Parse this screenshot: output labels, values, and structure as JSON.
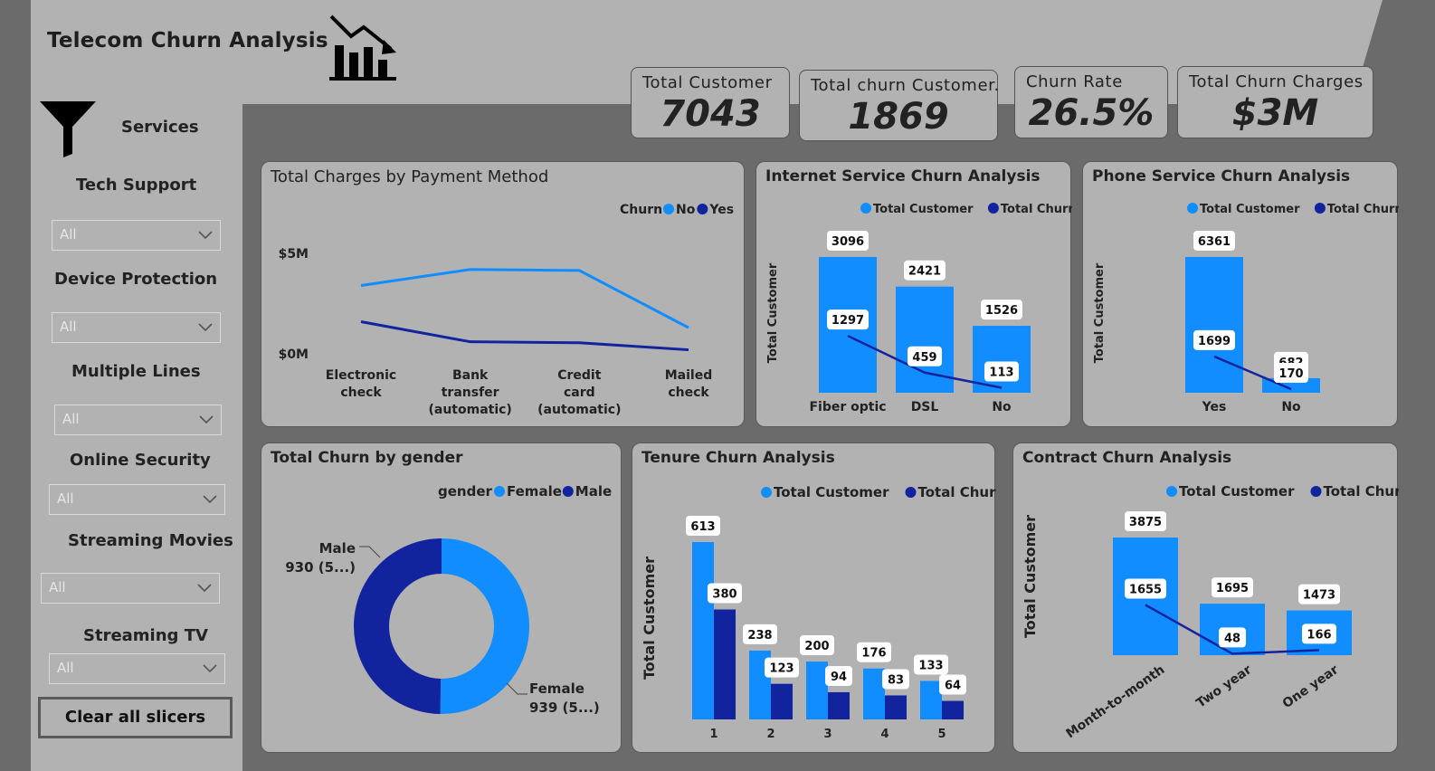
{
  "app": {
    "title": "Telecom Churn Analysis",
    "icon": "chart-decline-icon"
  },
  "colors": {
    "light_blue": "#118DFF",
    "dark_blue": "#12239E",
    "panel_gray": "#B2B2B2",
    "background_gray": "#6B6B6B"
  },
  "sidebar": {
    "filter_icon": "funnel-icon",
    "services_label": "Services",
    "slicers": [
      {
        "title": "Tech Support",
        "value": "All"
      },
      {
        "title": "Device Protection",
        "value": "All"
      },
      {
        "title": "Multiple Lines",
        "value": "All"
      },
      {
        "title": "Online Security",
        "value": "All"
      },
      {
        "title": "Streaming Movies",
        "value": "All"
      },
      {
        "title": "Streaming TV",
        "value": "All"
      }
    ],
    "clear_button": "Clear all slicers"
  },
  "kpis": [
    {
      "label": "Total Customer",
      "value": "7043"
    },
    {
      "label": "Total churn Customer.",
      "value": "1869"
    },
    {
      "label": "Churn Rate",
      "value": "26.5%"
    },
    {
      "label": "Total Churn Charges",
      "value": "$3M"
    }
  ],
  "cards": {
    "payment": "Total Charges by Payment Method",
    "internet": "Internet Service Churn Analysis",
    "phone": "Phone Service Churn Analysis",
    "gender": "Total Churn by gender",
    "tenure": "Tenure Churn Analysis",
    "contract": "Contract Churn Analysis"
  },
  "chart_data": [
    {
      "id": "payment",
      "type": "line",
      "title": "Total Charges by Payment Method",
      "legend_title": "Churn",
      "legend_position": "top-right",
      "categories": [
        "Electronic check",
        "Bank transfer (automatic)",
        "Credit card (automatic)",
        "Mailed check"
      ],
      "series": [
        {
          "name": "No",
          "color": "#118DFF",
          "values": [
            3.4,
            4.2,
            4.15,
            1.3
          ]
        },
        {
          "name": "Yes",
          "color": "#12239E",
          "values": [
            1.6,
            0.6,
            0.55,
            0.2
          ]
        }
      ],
      "ytick_labels": [
        "$5M",
        "$0M"
      ],
      "yticks": [
        5,
        0
      ],
      "ylim": [
        0,
        5
      ]
    },
    {
      "id": "internet",
      "type": "bar",
      "title": "Internet Service Churn Analysis",
      "ylabel": "Total Customer",
      "legend_position": "top",
      "categories": [
        "Fiber optic",
        "DSL",
        "No"
      ],
      "series": [
        {
          "name": "Total  Customer",
          "kind": "bar",
          "color": "#118DFF",
          "values": [
            3096,
            2421,
            1526
          ]
        },
        {
          "name": "Total Churn",
          "kind": "line",
          "color": "#12239E",
          "values": [
            1297,
            459,
            113
          ]
        }
      ],
      "ylim": [
        0,
        3096
      ]
    },
    {
      "id": "phone",
      "type": "bar",
      "title": "Phone Service Churn Analysis",
      "ylabel": "Total Customer",
      "legend_position": "top",
      "categories": [
        "Yes",
        "No"
      ],
      "series": [
        {
          "name": "Total  Customer",
          "kind": "bar",
          "color": "#118DFF",
          "values": [
            6361,
            682
          ]
        },
        {
          "name": "Total Churn",
          "kind": "line",
          "color": "#12239E",
          "values": [
            1699,
            170
          ]
        }
      ],
      "ylim": [
        0,
        6361
      ]
    },
    {
      "id": "gender",
      "type": "pie",
      "title": "Total Churn by gender",
      "legend_title": "gender",
      "legend_position": "top-right",
      "categories": [
        "Female",
        "Male"
      ],
      "values": [
        939,
        930
      ],
      "colors": [
        "#118DFF",
        "#12239E"
      ],
      "labels": [
        {
          "name": "Female",
          "text": "939 (5...)"
        },
        {
          "name": "Male",
          "text": "930 (5...)"
        }
      ]
    },
    {
      "id": "tenure",
      "type": "bar",
      "title": "Tenure Churn Analysis",
      "ylabel": "Total Customer",
      "legend_position": "top",
      "categories": [
        "1",
        "2",
        "3",
        "4",
        "5"
      ],
      "series": [
        {
          "name": "Total  Customer",
          "color": "#118DFF",
          "values": [
            613,
            238,
            200,
            176,
            133
          ]
        },
        {
          "name": "Total Churn",
          "color": "#12239E",
          "values": [
            380,
            123,
            94,
            83,
            64
          ]
        }
      ],
      "ylim": [
        0,
        613
      ]
    },
    {
      "id": "contract",
      "type": "bar",
      "title": "Contract Churn Analysis",
      "ylabel": "Total Customer",
      "legend_position": "top",
      "categories": [
        "Month-to-month",
        "Two year",
        "One year"
      ],
      "series": [
        {
          "name": "Total  Customer",
          "kind": "bar",
          "color": "#118DFF",
          "values": [
            3875,
            1695,
            1473
          ]
        },
        {
          "name": "Total Churn",
          "kind": "line",
          "color": "#12239E",
          "values": [
            1655,
            48,
            166
          ]
        }
      ],
      "ylim": [
        0,
        3875
      ]
    }
  ]
}
